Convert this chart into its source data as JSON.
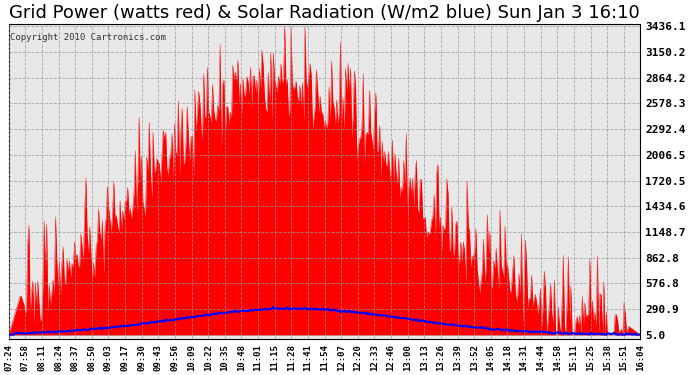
{
  "title": "Grid Power (watts red) & Solar Radiation (W/m2 blue) Sun Jan 3 16:10",
  "copyright_text": "Copyright 2010 Cartronics.com",
  "yticks": [
    5.0,
    290.9,
    576.8,
    862.8,
    1148.7,
    1434.6,
    1720.5,
    2006.5,
    2292.4,
    2578.3,
    2864.2,
    3150.2,
    3436.1
  ],
  "ymin": 5.0,
  "ymax": 3436.1,
  "bg_color": "#ffffff",
  "plot_bg_color": "#ffffff",
  "grid_color": "#aaaaaa",
  "red_color": "#ff0000",
  "blue_color": "#0000ff",
  "title_fontsize": 13,
  "tick_fontsize": 8,
  "x_labels": [
    "07:24",
    "07:58",
    "08:11",
    "08:24",
    "08:37",
    "08:50",
    "09:03",
    "09:17",
    "09:30",
    "09:43",
    "09:56",
    "10:09",
    "10:22",
    "10:35",
    "10:48",
    "11:01",
    "11:15",
    "11:28",
    "11:41",
    "11:54",
    "12:07",
    "12:20",
    "12:33",
    "12:46",
    "13:00",
    "13:13",
    "13:26",
    "13:39",
    "13:52",
    "14:05",
    "14:18",
    "14:31",
    "14:44",
    "14:58",
    "15:11",
    "15:25",
    "15:38",
    "15:51",
    "16:04"
  ]
}
